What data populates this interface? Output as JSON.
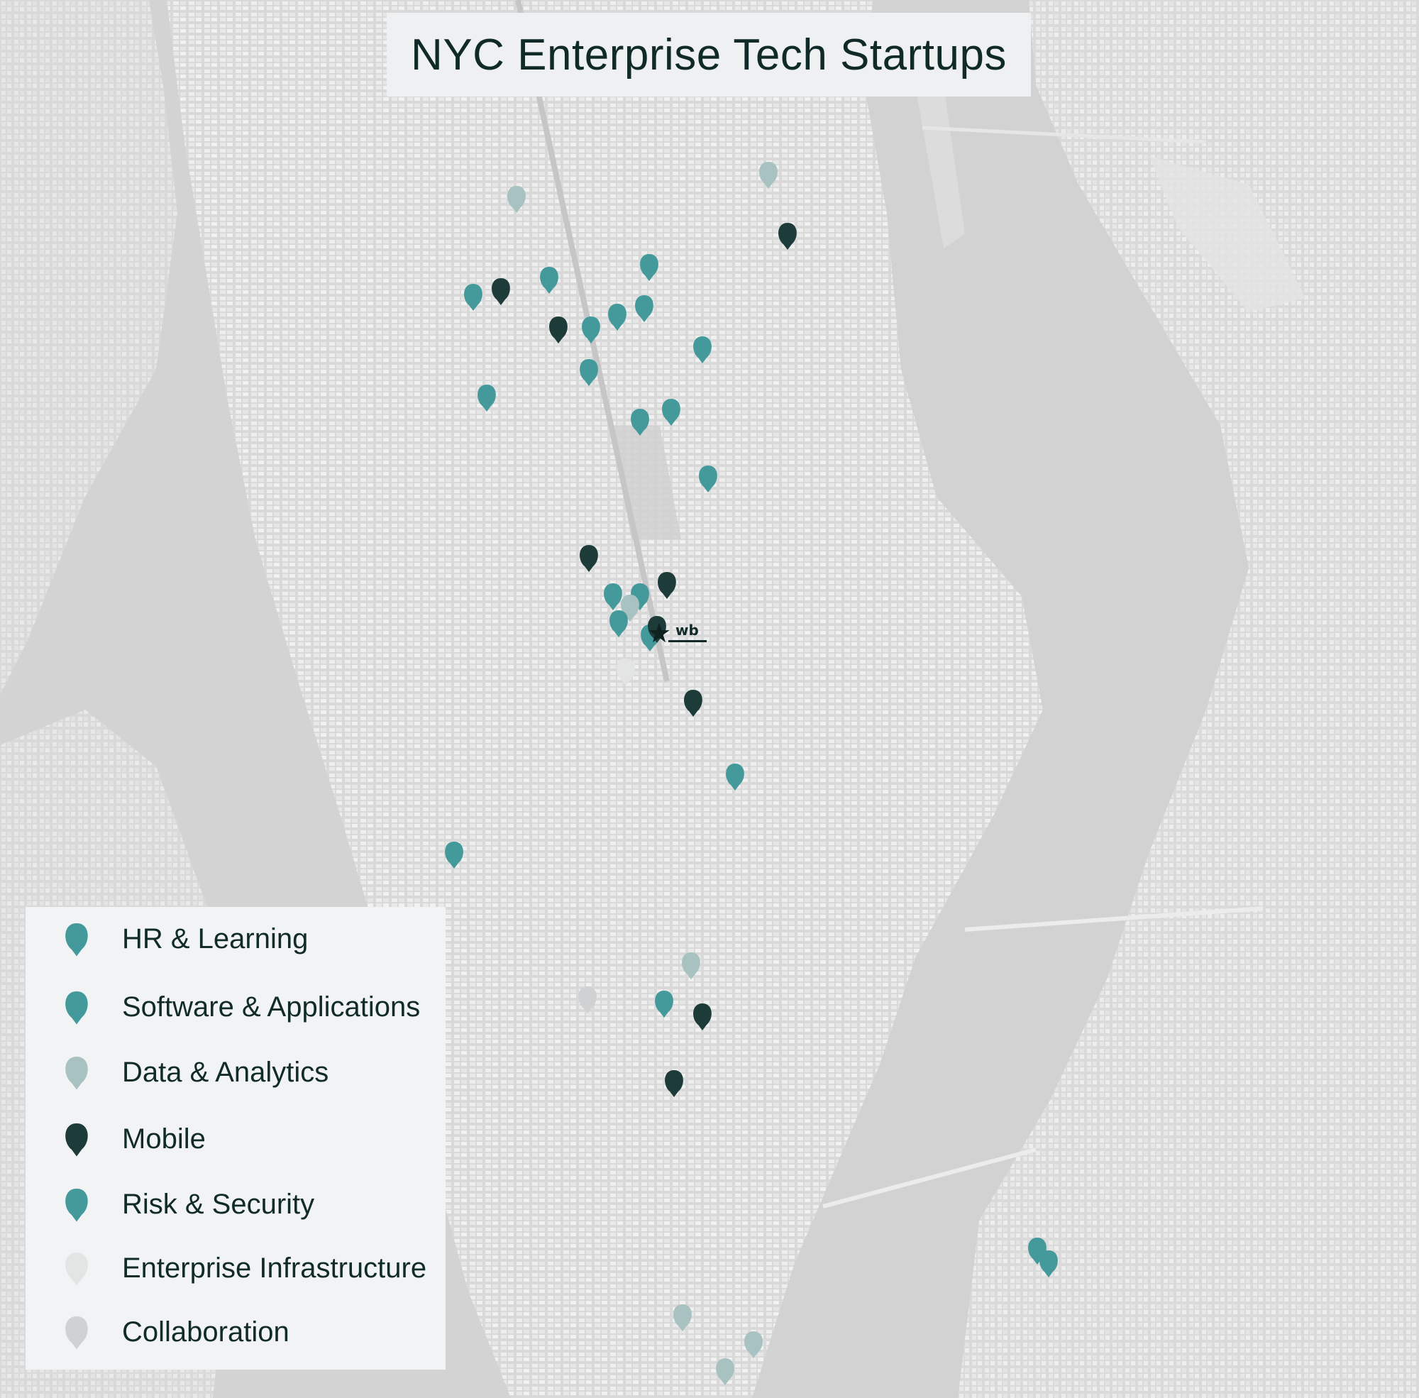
{
  "title": "NYC Enterprise Tech Startups",
  "colors": {
    "hr_learning": "#44999a",
    "software_applications": "#44999a",
    "data_analytics": "#a7c2c1",
    "mobile": "#1d3b38",
    "risk_security": "#44999a",
    "enterprise_infrastructure": "#e3e4e4",
    "collaboration": "#cfd1d2",
    "land": "#e2e2e2",
    "water": "#d4d4d4",
    "dark_block": "#c8c8c8"
  },
  "legend": [
    {
      "label": "HR & Learning",
      "category": "hr_learning",
      "icon": "map-pin-icon"
    },
    {
      "label": "Software & Applications",
      "category": "software_applications",
      "icon": "map-pin-icon"
    },
    {
      "label": "Data & Analytics",
      "category": "data_analytics",
      "icon": "map-pin-icon"
    },
    {
      "label": "Mobile",
      "category": "mobile",
      "icon": "map-pin-icon"
    },
    {
      "label": "Risk & Security",
      "category": "risk_security",
      "icon": "map-pin-icon"
    },
    {
      "label": "Enterprise Infrastructure",
      "category": "enterprise_infrastructure",
      "icon": "map-pin-icon"
    },
    {
      "label": "Collaboration",
      "category": "collaboration",
      "icon": "map-pin-icon"
    }
  ],
  "hq_marker": {
    "label": "wb",
    "icon": "star-icon"
  }
}
